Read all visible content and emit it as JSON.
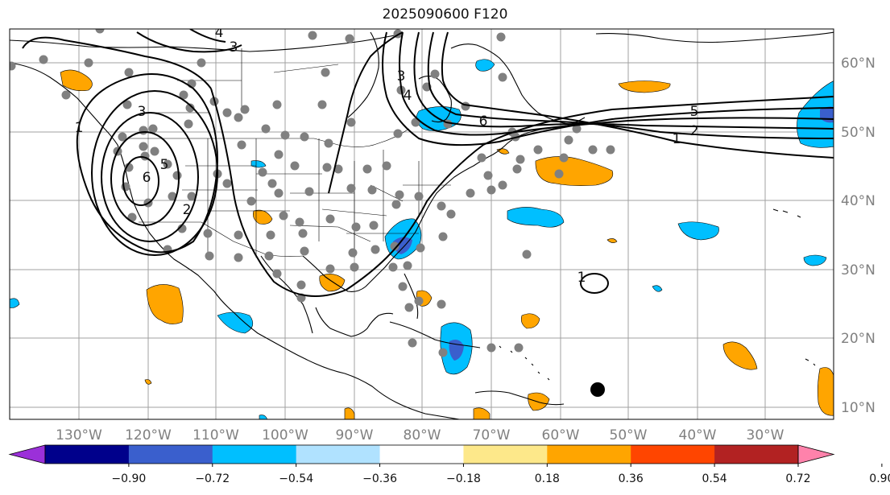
{
  "title": "2025090600 F120",
  "map": {
    "lon_range": [
      -140,
      -20
    ],
    "lat_range": [
      8,
      65
    ],
    "lon_ticks": [
      "130°W",
      "120°W",
      "110°W",
      "100°W",
      "90°W",
      "80°W",
      "70°W",
      "60°W",
      "50°W",
      "40°W",
      "30°W"
    ],
    "lat_ticks": [
      "60°N",
      "50°N",
      "40°N",
      "30°N",
      "20°N",
      "10°N"
    ],
    "contour_labels": [
      "1",
      "3",
      "3",
      "4",
      "6",
      "5",
      "2",
      "3",
      "4",
      "6",
      "5",
      "2",
      "1",
      "1"
    ],
    "colors": {
      "grid": "#a0a0a0",
      "coast": "#000000",
      "station": "#808080",
      "marker": "#000000"
    }
  },
  "colorbar": {
    "ticks": [
      "−0.90",
      "−0.72",
      "−0.54",
      "−0.36",
      "−0.18",
      "0.18",
      "0.36",
      "0.54",
      "0.72",
      "0.90"
    ],
    "colors": [
      "#9b30d9",
      "#00008b",
      "#3a5fcd",
      "#00bfff",
      "#b0e2ff",
      "#ffffff",
      "#fde88a",
      "#ffa500",
      "#ff4500",
      "#b22222",
      "#ff82ab"
    ]
  }
}
